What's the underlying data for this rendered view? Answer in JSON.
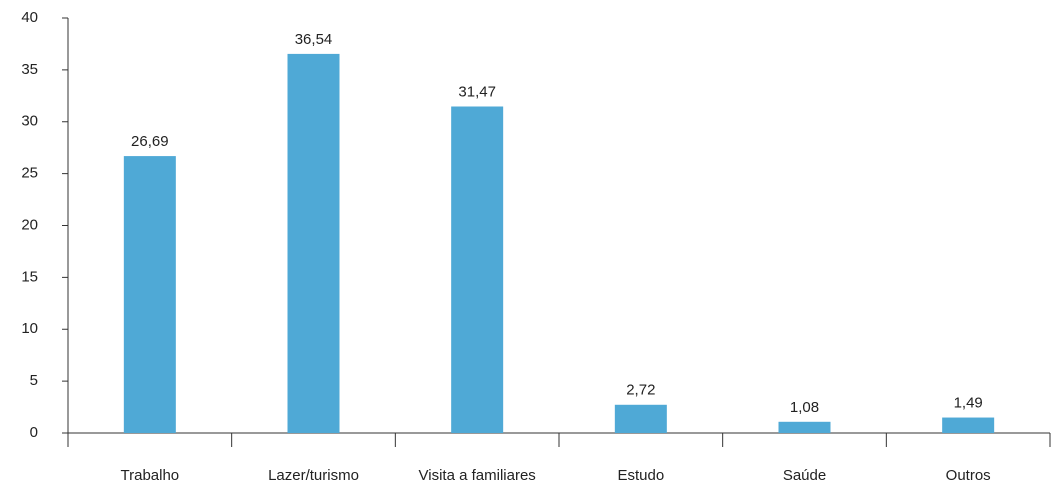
{
  "chart_data": {
    "type": "bar",
    "categories": [
      "Trabalho",
      "Lazer/turismo",
      "Visita a familiares",
      "Estudo",
      "Saúde",
      "Outros"
    ],
    "values": [
      26.69,
      36.54,
      31.47,
      2.72,
      1.08,
      1.49
    ],
    "value_labels": [
      "26,69",
      "36,54",
      "31,47",
      "2,72",
      "1,08",
      "1,49"
    ],
    "color": "#4fa9d6",
    "ylim": [
      0,
      40
    ],
    "yticks": [
      0,
      5,
      10,
      15,
      20,
      25,
      30,
      35,
      40
    ]
  }
}
